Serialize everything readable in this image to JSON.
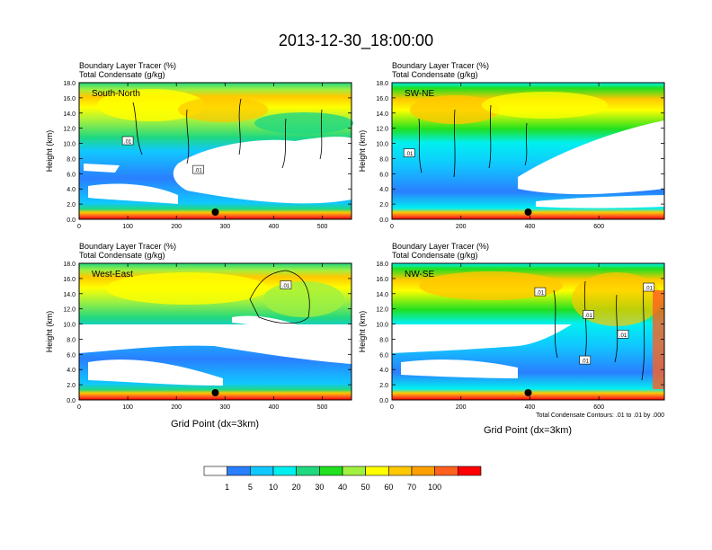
{
  "figure": {
    "title": "2013-12-30_18:00:00",
    "xlabel": "Grid Point (dx=3km)",
    "contour_note": "Total Condensate Contours: .01 to .01 by .000"
  },
  "colorbar": {
    "labels": [
      "1",
      "5",
      "10",
      "20",
      "30",
      "40",
      "50",
      "60",
      "70",
      "100"
    ],
    "colors": [
      "#ffffff",
      "#2a7fff",
      "#10c8ff",
      "#00f0f0",
      "#20d880",
      "#20e020",
      "#a0f040",
      "#ffff00",
      "#ffc800",
      "#ffa000",
      "#ff6020",
      "#ff0000"
    ]
  },
  "chart_data": [
    {
      "type": "heatmap",
      "panel": "South-North",
      "title_lines": [
        "Boundary Layer Tracer    (%)",
        "Total Condensate    (g/kg)"
      ],
      "ylabel": "Height (km)",
      "ylim": [
        0,
        18
      ],
      "yticks": [
        "0.0",
        "2.0",
        "4.0",
        "6.0",
        "8.0",
        "10.0",
        "12.0",
        "14.0",
        "16.0",
        "18.0"
      ],
      "xlim": [
        0,
        560
      ],
      "xticks": [
        "0",
        "100",
        "200",
        "300",
        "400",
        "500"
      ],
      "xtick_values": [
        0,
        100,
        200,
        300,
        400,
        500
      ],
      "marker_x": 280,
      "contour_labels": [
        {
          "text": ".01",
          "x": 100,
          "y": 10.3
        },
        {
          "text": ".01",
          "x": 245,
          "y": 6.5
        }
      ]
    },
    {
      "type": "heatmap",
      "panel": "SW-NE",
      "title_lines": [
        "Boundary Layer Tracer    (%)",
        "Total Condensate    (g/kg)"
      ],
      "ylabel": "Height (km)",
      "ylim": [
        0,
        18
      ],
      "yticks": [
        "0.0",
        "2.0",
        "4.0",
        "6.0",
        "8.0",
        "10.0",
        "12.0",
        "14.0",
        "16.0",
        "18.0"
      ],
      "xlim": [
        0,
        790
      ],
      "xticks": [
        "0",
        "200",
        "400",
        "600"
      ],
      "xtick_values": [
        0,
        200,
        400,
        600
      ],
      "marker_x": 395,
      "contour_labels": [
        {
          "text": ".01",
          "x": 50,
          "y": 8.7
        }
      ]
    },
    {
      "type": "heatmap",
      "panel": "West-East",
      "title_lines": [
        "Boundary Layer Tracer    (%)",
        "Total Condensate    (g/kg)"
      ],
      "ylabel": "Height (km)",
      "ylim": [
        0,
        18
      ],
      "yticks": [
        "0.0",
        "2.0",
        "4.0",
        "6.0",
        "8.0",
        "10.0",
        "12.0",
        "14.0",
        "16.0",
        "18.0"
      ],
      "xlim": [
        0,
        560
      ],
      "xticks": [
        "0",
        "100",
        "200",
        "300",
        "400",
        "500"
      ],
      "xtick_values": [
        0,
        100,
        200,
        300,
        400,
        500
      ],
      "marker_x": 280,
      "contour_labels": [
        {
          "text": ".01",
          "x": 425,
          "y": 15.1
        }
      ]
    },
    {
      "type": "heatmap",
      "panel": "NW-SE",
      "title_lines": [
        "Boundary Layer Tracer    (%)",
        "Total Condensate    (g/kg)"
      ],
      "ylabel": "Height (km)",
      "ylim": [
        0,
        18
      ],
      "yticks": [
        "0.0",
        "2.0",
        "4.0",
        "6.0",
        "8.0",
        "10.0",
        "12.0",
        "14.0",
        "16.0",
        "18.0"
      ],
      "xlim": [
        0,
        790
      ],
      "xticks": [
        "0",
        "200",
        "400",
        "600"
      ],
      "xtick_values": [
        0,
        200,
        400,
        600
      ],
      "marker_x": 395,
      "contour_labels": [
        {
          "text": ".01",
          "x": 430,
          "y": 14.2
        },
        {
          "text": ".01",
          "x": 570,
          "y": 11.2
        },
        {
          "text": ".01",
          "x": 670,
          "y": 8.6
        },
        {
          "text": ".01",
          "x": 560,
          "y": 5.2
        },
        {
          "text": ".01",
          "x": 745,
          "y": 14.8
        }
      ]
    }
  ]
}
